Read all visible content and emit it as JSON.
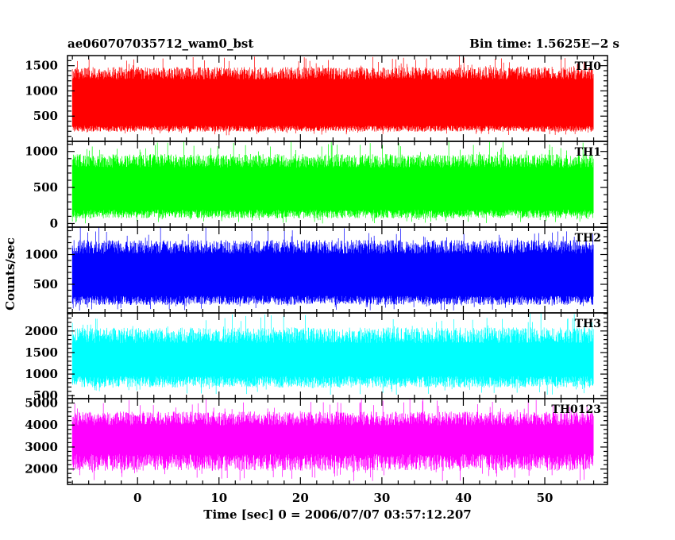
{
  "header": {
    "title": "ae060707035712_wam0_bst",
    "bin_time": "Bin time: 1.5625E−2 s"
  },
  "chart_data": {
    "type": "line",
    "xlabel": "Time [sec] 0 = 2006/07/07 03:57:12.207",
    "ylabel": "Counts/sec",
    "xlim": [
      -8.6,
      57.7
    ],
    "x_data_range": [
      -8.0,
      56.0
    ],
    "x_ticks": [
      0,
      10,
      20,
      30,
      40,
      50
    ],
    "x_minor_step": 2,
    "grid": false,
    "panels": [
      {
        "label": "TH0",
        "color": "#ff0000",
        "ylim": [
          0,
          1700
        ],
        "y_ticks": [
          500,
          1000,
          1500
        ],
        "y_minor_step": 100,
        "typical_range": [
          250,
          1350
        ],
        "peak_range": [
          120,
          1700
        ],
        "mean_level": 820
      },
      {
        "label": "TH1",
        "color": "#00ff00",
        "ylim": [
          -50,
          1140
        ],
        "y_ticks": [
          0,
          500,
          1000
        ],
        "y_minor_step": 100,
        "typical_range": [
          130,
          870
        ],
        "peak_range": [
          0,
          1140
        ],
        "mean_level": 480
      },
      {
        "label": "TH2",
        "color": "#0000ff",
        "ylim": [
          20,
          1460
        ],
        "y_ticks": [
          500,
          1000
        ],
        "y_minor_step": 100,
        "typical_range": [
          230,
          1130
        ],
        "peak_range": [
          60,
          1460
        ],
        "mean_level": 680
      },
      {
        "label": "TH3",
        "color": "#00ffff",
        "ylim": [
          430,
          2420
        ],
        "y_ticks": [
          500,
          1000,
          1500,
          2000
        ],
        "y_minor_step": 100,
        "typical_range": [
          820,
          1900
        ],
        "peak_range": [
          520,
          2420
        ],
        "mean_level": 1350
      },
      {
        "label": "TH0123",
        "color": "#ff00ff",
        "ylim": [
          1300,
          5200
        ],
        "y_ticks": [
          2000,
          3000,
          4000,
          5000
        ],
        "y_minor_step": 200,
        "typical_range": [
          2300,
          4300
        ],
        "peak_range": [
          1450,
          5200
        ],
        "mean_level": 3300
      }
    ]
  }
}
